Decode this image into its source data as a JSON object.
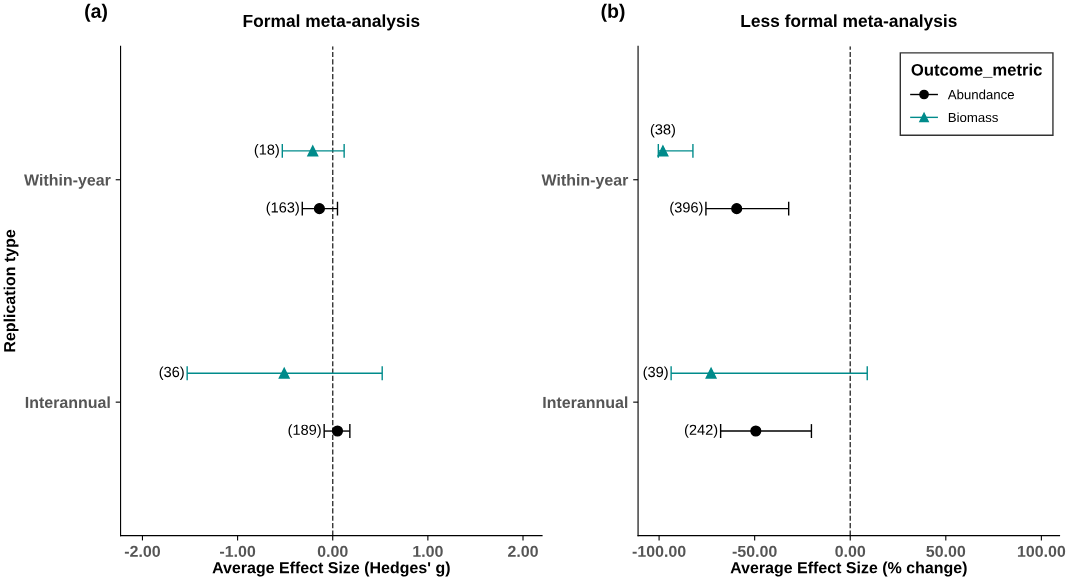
{
  "chart_data": [
    {
      "type": "scatter",
      "orientation": "horizontal",
      "title": "Formal meta-analysis",
      "xlabel": "Average Effect Size (Hedges' g)",
      "ylabel": "Replication type",
      "categories": [
        "Within-year",
        "Interannual"
      ],
      "xlim": [
        -2.23,
        2.2
      ],
      "xticks": [
        {
          "value": -2,
          "label": "-2.00"
        },
        {
          "value": -1,
          "label": "-1.00"
        },
        {
          "value": 0,
          "label": "0.00"
        },
        {
          "value": 1,
          "label": "1.00"
        },
        {
          "value": 2,
          "label": "2.00"
        }
      ],
      "series": [
        {
          "color": "#000000",
          "marker": "circle",
          "values": [
            -0.14,
            0.05
          ],
          "errors": [
            [
              -0.32,
              0.05
            ],
            [
              -0.09,
              0.18
            ]
          ]
        },
        {
          "color": "#008b8b",
          "marker": "triangle",
          "values": [
            -0.21,
            -0.51
          ],
          "errors": [
            [
              -0.53,
              0.12
            ],
            [
              -1.53,
              0.52
            ]
          ]
        }
      ],
      "annotations": [
        "(a)",
        "(163)",
        "(189)",
        "(18)",
        "(36)"
      ],
      "grid": false,
      "ref_lines": [
        {
          "axis": "x",
          "value": 0,
          "line_style": "dashed",
          "color": "#333333"
        }
      ],
      "legend": false
    },
    {
      "type": "scatter",
      "orientation": "horizontal",
      "title": "Less formal meta-analysis",
      "xlabel": "Average Effect Size (% change)",
      "legend_title": "Outcome_metric",
      "categories": [
        "Within-year",
        "Interannual"
      ],
      "xlim": [
        -111,
        109.5
      ],
      "xticks": [
        {
          "value": -100,
          "label": "-100.00"
        },
        {
          "value": -50,
          "label": "-50.00"
        },
        {
          "value": 0,
          "label": "0.00"
        },
        {
          "value": 50,
          "label": "50.00"
        },
        {
          "value": 100,
          "label": "100.00"
        }
      ],
      "series": [
        {
          "name": "Abundance",
          "color": "#000000",
          "marker": "circle",
          "values": [
            -59.4,
            -49.4
          ],
          "errors": [
            [
              -75.5,
              -32.2
            ],
            [
              -67.8,
              -20.3
            ]
          ]
        },
        {
          "name": "Biomass",
          "color": "#008b8b",
          "marker": "triangle",
          "values": [
            -98.0,
            -72.8
          ],
          "errors": [
            [
              -100.4,
              -82.3
            ],
            [
              -93.7,
              8.9
            ]
          ]
        }
      ],
      "annotations": [
        "(b)",
        "(396)",
        "(242)",
        "(38)",
        "(39)"
      ],
      "grid": false,
      "ref_lines": [
        {
          "axis": "x",
          "value": 0,
          "line_style": "dashed",
          "color": "#333333"
        }
      ],
      "legend": "top right"
    }
  ]
}
